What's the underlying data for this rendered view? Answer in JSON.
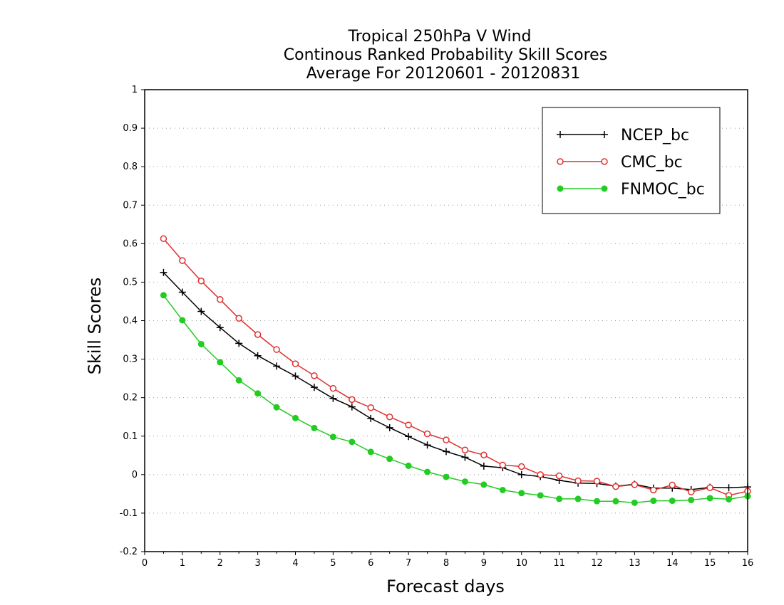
{
  "chart_data": {
    "type": "line",
    "title": [
      "Tropical 250hPa V Wind",
      "Continous Ranked Probability Skill Scores",
      "Average For 20120601 - 20120831"
    ],
    "xlabel": "Forecast days",
    "ylabel": "Skill Scores",
    "xlim": [
      0,
      16
    ],
    "ylim": [
      -0.2,
      1
    ],
    "xticks": [
      0,
      1,
      2,
      3,
      4,
      5,
      6,
      7,
      8,
      9,
      10,
      11,
      12,
      13,
      14,
      15,
      16
    ],
    "yticks": [
      -0.2,
      -0.1,
      0,
      0.1,
      0.2,
      0.3,
      0.4,
      0.5,
      0.6,
      0.7,
      0.8,
      0.9,
      1
    ],
    "ytick_labels": [
      "-0.2",
      "-0.1",
      "0",
      "0.1",
      "0.2",
      "0.3",
      "0.4",
      "0.5",
      "0.6",
      "0.7",
      "0.8",
      "0.9",
      "1"
    ],
    "grid": "horizontal dotted",
    "legend_position": "top-right",
    "x": [
      0.5,
      1,
      1.5,
      2,
      2.5,
      3,
      3.5,
      4,
      4.5,
      5,
      5.5,
      6,
      6.5,
      7,
      7.5,
      8,
      8.5,
      9,
      9.5,
      10,
      10.5,
      11,
      11.5,
      12,
      12.5,
      13,
      13.5,
      14,
      14.5,
      15,
      15.5,
      16
    ],
    "series": [
      {
        "name": "NCEP_bc",
        "color": "#000000",
        "marker": "plus",
        "values": [
          0.525,
          0.474,
          0.424,
          0.382,
          0.341,
          0.309,
          0.282,
          0.256,
          0.227,
          0.198,
          0.176,
          0.146,
          0.122,
          0.099,
          0.077,
          0.06,
          0.045,
          0.022,
          0.018,
          0.0,
          -0.005,
          -0.015,
          -0.022,
          -0.023,
          -0.03,
          -0.025,
          -0.035,
          -0.035,
          -0.039,
          -0.033,
          -0.034,
          -0.032
        ]
      },
      {
        "name": "CMC_bc",
        "color": "#e03030",
        "marker": "open-circle",
        "values": [
          0.613,
          0.556,
          0.503,
          0.455,
          0.406,
          0.364,
          0.325,
          0.288,
          0.257,
          0.224,
          0.195,
          0.174,
          0.15,
          0.129,
          0.106,
          0.09,
          0.064,
          0.051,
          0.025,
          0.021,
          0.0,
          -0.003,
          -0.016,
          -0.017,
          -0.031,
          -0.026,
          -0.04,
          -0.027,
          -0.045,
          -0.034,
          -0.054,
          -0.043
        ]
      },
      {
        "name": "FNMOC_bc",
        "color": "#22cc22",
        "marker": "filled-circle",
        "values": [
          0.466,
          0.401,
          0.339,
          0.292,
          0.245,
          0.211,
          0.175,
          0.147,
          0.121,
          0.098,
          0.085,
          0.059,
          0.041,
          0.023,
          0.007,
          -0.006,
          -0.018,
          -0.026,
          -0.04,
          -0.048,
          -0.054,
          -0.063,
          -0.063,
          -0.069,
          -0.069,
          -0.073,
          -0.068,
          -0.068,
          -0.066,
          -0.061,
          -0.064,
          -0.056
        ]
      }
    ]
  }
}
